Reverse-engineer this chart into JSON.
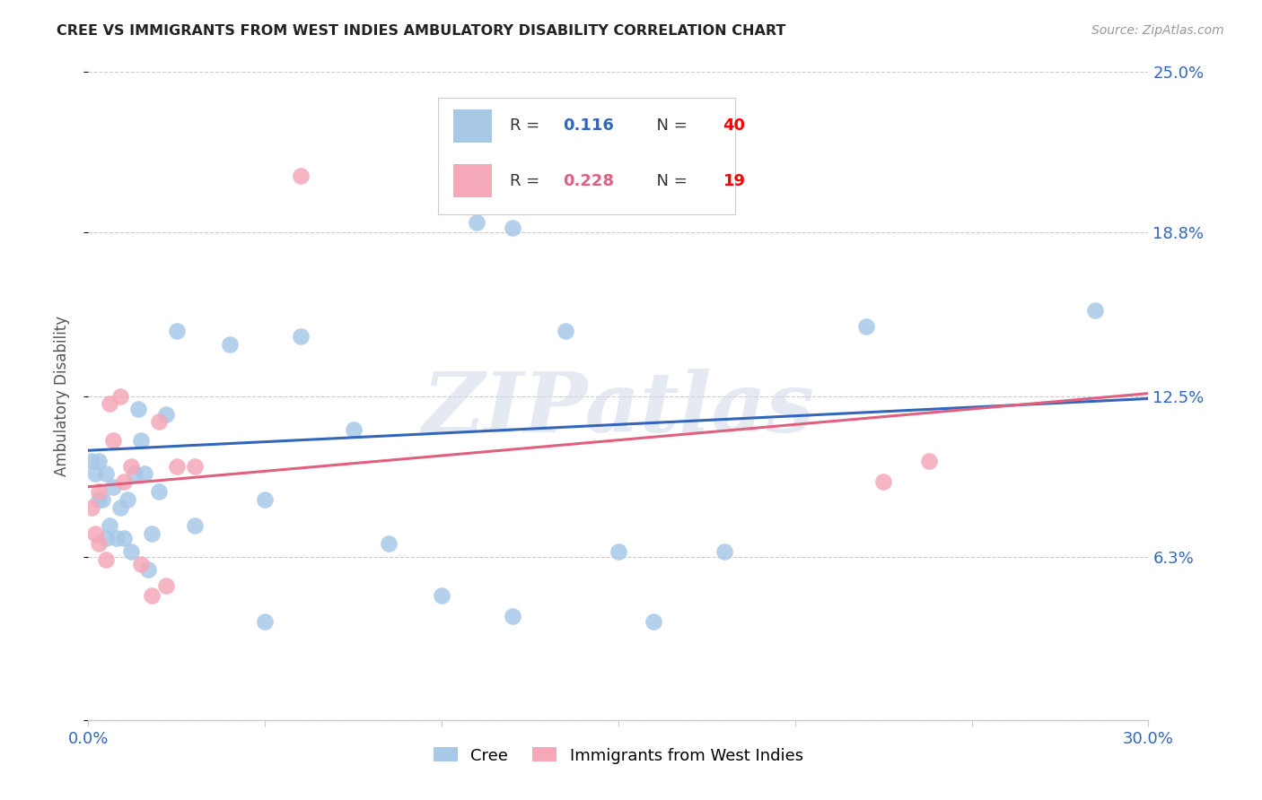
{
  "title": "CREE VS IMMIGRANTS FROM WEST INDIES AMBULATORY DISABILITY CORRELATION CHART",
  "source": "Source: ZipAtlas.com",
  "ylabel": "Ambulatory Disability",
  "xlim": [
    0.0,
    0.3
  ],
  "ylim": [
    0.0,
    0.25
  ],
  "yticks": [
    0.0,
    0.063,
    0.125,
    0.188,
    0.25
  ],
  "ytick_labels": [
    "",
    "6.3%",
    "12.5%",
    "18.8%",
    "25.0%"
  ],
  "xticks": [
    0.0,
    0.05,
    0.1,
    0.15,
    0.2,
    0.25,
    0.3
  ],
  "xtick_labels": [
    "0.0%",
    "",
    "",
    "",
    "",
    "",
    "30.0%"
  ],
  "legend_R_blue": "0.116",
  "legend_N_blue": "40",
  "legend_R_pink": "0.228",
  "legend_N_pink": "19",
  "watermark": "ZIPatlas",
  "blue_color": "#a8c8e8",
  "pink_color": "#f4a8b8",
  "blue_line_color": "#3366bb",
  "pink_line_color": "#e06080",
  "cree_x": [
    0.001,
    0.002,
    0.003,
    0.003,
    0.004,
    0.005,
    0.005,
    0.006,
    0.007,
    0.008,
    0.009,
    0.01,
    0.011,
    0.012,
    0.013,
    0.014,
    0.015,
    0.016,
    0.017,
    0.018,
    0.02,
    0.022,
    0.025,
    0.03,
    0.04,
    0.05,
    0.06,
    0.075,
    0.085,
    0.1,
    0.11,
    0.12,
    0.135,
    0.15,
    0.18,
    0.22,
    0.285,
    0.05,
    0.12,
    0.16
  ],
  "cree_y": [
    0.1,
    0.095,
    0.085,
    0.1,
    0.085,
    0.095,
    0.07,
    0.075,
    0.09,
    0.07,
    0.082,
    0.07,
    0.085,
    0.065,
    0.095,
    0.12,
    0.108,
    0.095,
    0.058,
    0.072,
    0.088,
    0.118,
    0.15,
    0.075,
    0.145,
    0.085,
    0.148,
    0.112,
    0.068,
    0.048,
    0.192,
    0.19,
    0.15,
    0.065,
    0.065,
    0.152,
    0.158,
    0.038,
    0.04,
    0.038
  ],
  "west_indies_x": [
    0.001,
    0.002,
    0.003,
    0.003,
    0.005,
    0.006,
    0.007,
    0.009,
    0.01,
    0.012,
    0.015,
    0.018,
    0.02,
    0.022,
    0.025,
    0.03,
    0.06,
    0.225,
    0.238
  ],
  "west_indies_y": [
    0.082,
    0.072,
    0.088,
    0.068,
    0.062,
    0.122,
    0.108,
    0.125,
    0.092,
    0.098,
    0.06,
    0.048,
    0.115,
    0.052,
    0.098,
    0.098,
    0.21,
    0.092,
    0.1
  ],
  "blue_line_x0": 0.0,
  "blue_line_y0": 0.104,
  "blue_line_x1": 0.3,
  "blue_line_y1": 0.124,
  "pink_line_x0": 0.0,
  "pink_line_y0": 0.09,
  "pink_line_x1": 0.3,
  "pink_line_y1": 0.126
}
